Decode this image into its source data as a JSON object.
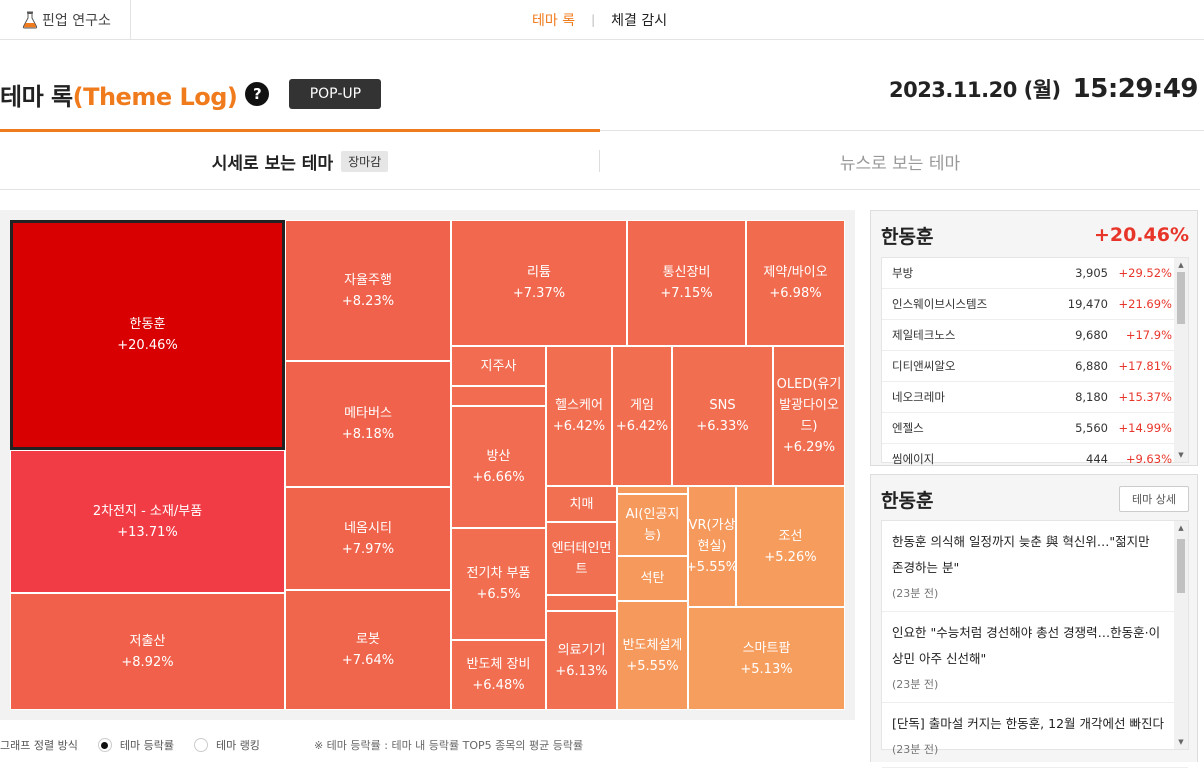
{
  "topbar": {
    "brand": "핀업 연구소",
    "nav": [
      {
        "label": "테마 록",
        "active": true
      },
      {
        "label": "체결 감시",
        "active": false
      }
    ]
  },
  "header": {
    "title_main": "테마 록",
    "title_sub": "(Theme Log)",
    "help_label": "?",
    "popup_label": "POP-UP",
    "date": "2023.11.20 (월)",
    "time": "15:29:49"
  },
  "tabs": {
    "left_label": "시세로 보는 테마",
    "left_badge": "장마감",
    "right_label": "뉴스로 보는 테마"
  },
  "colors": {
    "accent": "#f07b1d",
    "rise": "#e8352a",
    "selected_tile": "#d80000"
  },
  "treemap": {
    "selected": "한동훈",
    "tiles": [
      {
        "name": "한동훈",
        "rate": "+20.46%",
        "color": "#d80000"
      },
      {
        "name": "2차전지 - 소재/부품",
        "rate": "+13.71%",
        "color": "#f23c45"
      },
      {
        "name": "저출산",
        "rate": "+8.92%",
        "color": "#f0604a"
      },
      {
        "name": "자율주행",
        "rate": "+8.23%",
        "color": "#f0624c"
      },
      {
        "name": "메타버스",
        "rate": "+8.18%",
        "color": "#f0624c"
      },
      {
        "name": "네옴시티",
        "rate": "+7.97%",
        "color": "#f0644c"
      },
      {
        "name": "로봇",
        "rate": "+7.64%",
        "color": "#f0664d"
      },
      {
        "name": "리튬",
        "rate": "+7.37%",
        "color": "#f1684e"
      },
      {
        "name": "통신장비",
        "rate": "+7.15%",
        "color": "#f16a4f"
      },
      {
        "name": "제약/바이오",
        "rate": "+6.98%",
        "color": "#f16b4f"
      },
      {
        "name": "지주사",
        "rate": "",
        "color": "#f16c50"
      },
      {
        "name": "",
        "rate": "",
        "color": "#f16c50"
      },
      {
        "name": "방산",
        "rate": "+6.66%",
        "color": "#f16c50"
      },
      {
        "name": "헬스케어",
        "rate": "+6.42%",
        "color": "#f16e51"
      },
      {
        "name": "게임",
        "rate": "+6.42%",
        "color": "#f16e51"
      },
      {
        "name": "SNS",
        "rate": "+6.33%",
        "color": "#f16e51"
      },
      {
        "name": "OLED(유기발광다이오드)",
        "rate": "+6.29%",
        "color": "#f16f51"
      },
      {
        "name": "전기차 부품",
        "rate": "+6.5%",
        "color": "#f16e51"
      },
      {
        "name": "반도체 장비",
        "rate": "+6.48%",
        "color": "#f16e51"
      },
      {
        "name": "치매",
        "rate": "",
        "color": "#f17052"
      },
      {
        "name": "엔터테인먼트",
        "rate": "",
        "color": "#f17052"
      },
      {
        "name": "",
        "rate": "",
        "color": "#f17052"
      },
      {
        "name": "의료기기",
        "rate": "+6.13%",
        "color": "#f17052"
      },
      {
        "name": "",
        "rate": "",
        "color": "#f59a5c"
      },
      {
        "name": "AI(인공지능)",
        "rate": "",
        "color": "#f59a5c"
      },
      {
        "name": "석탄",
        "rate": "",
        "color": "#f59a5c"
      },
      {
        "name": "반도체설계",
        "rate": "+5.55%",
        "color": "#f59a5c"
      },
      {
        "name": "VR(가상현실)",
        "rate": "+5.55%",
        "color": "#f59a5c"
      },
      {
        "name": "조선",
        "rate": "+5.26%",
        "color": "#f69d5d"
      },
      {
        "name": "스마트팜",
        "rate": "+5.13%",
        "color": "#f69e5e"
      }
    ]
  },
  "legend": {
    "sort_label": "그래프 정렬 방식",
    "option1": "테마 등락률",
    "option2": "테마 랭킹",
    "note": "※ 테마 등락률 : 테마 내 등락률 TOP5 종목의 평균 등락률"
  },
  "stock_panel": {
    "theme": "한동훈",
    "rate": "+20.46%",
    "stocks": [
      {
        "name": "부방",
        "price": "3,905",
        "rate": "+29.52%"
      },
      {
        "name": "인스웨이브시스템즈",
        "price": "19,470",
        "rate": "+21.69%"
      },
      {
        "name": "제일테크노스",
        "price": "9,680",
        "rate": "+17.9%"
      },
      {
        "name": "디티앤씨알오",
        "price": "6,880",
        "rate": "+17.81%"
      },
      {
        "name": "네오크레마",
        "price": "8,180",
        "rate": "+15.37%"
      },
      {
        "name": "엔젤스",
        "price": "5,560",
        "rate": "+14.99%"
      },
      {
        "name": "씸에이지",
        "price": "444",
        "rate": "+9.63%"
      }
    ]
  },
  "news_panel": {
    "theme": "한동훈",
    "detail_label": "테마 상세",
    "items": [
      {
        "headline": "한동훈 의식해 일정까지 늦춘 與 혁신위…\"젊지만 존경하는 분\"",
        "ago": "(23분 전)"
      },
      {
        "headline": "인요한 \"수능처럼 경선해야 총선 경쟁력…한동훈·이상민 아주 신선해\"",
        "ago": "(23분 전)"
      },
      {
        "headline": "[단독] 출마설 커지는 한동훈, 12월 개각에선 빠진다",
        "ago": "(23분 전)"
      }
    ]
  }
}
